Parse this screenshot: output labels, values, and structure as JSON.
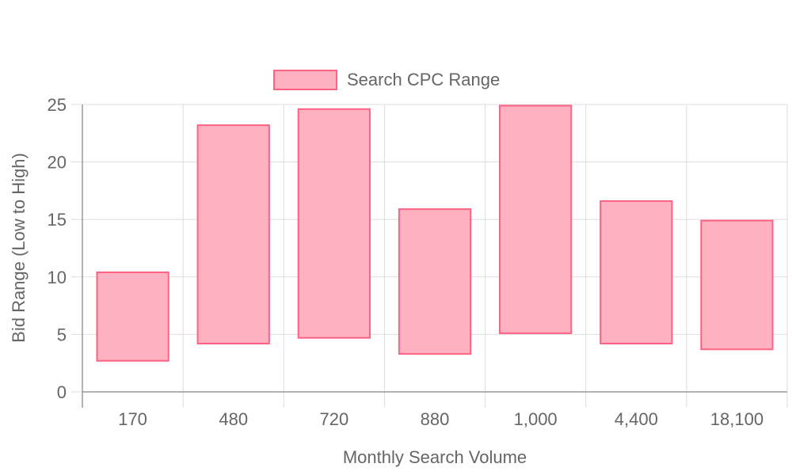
{
  "chart_data": {
    "type": "bar",
    "subtype": "floating-range",
    "categories": [
      "170",
      "480",
      "720",
      "880",
      "1,000",
      "4,400",
      "18,100"
    ],
    "series": [
      {
        "name": "Search CPC Range",
        "ranges": [
          [
            2.7,
            10.4
          ],
          [
            4.2,
            23.2
          ],
          [
            4.7,
            24.6
          ],
          [
            3.3,
            15.9
          ],
          [
            5.1,
            24.9
          ],
          [
            4.2,
            16.6
          ],
          [
            3.7,
            14.9
          ]
        ],
        "fill_color": "#ffb1c1",
        "border_color": "#ff6384"
      }
    ],
    "xlabel": "Monthly Search Volume",
    "ylabel": "Bid Range (Low to High)",
    "ylim": [
      0,
      25
    ],
    "yticks": [
      "0",
      "5",
      "10",
      "15",
      "20",
      "25"
    ],
    "grid": true,
    "legend_position": "top-center"
  }
}
